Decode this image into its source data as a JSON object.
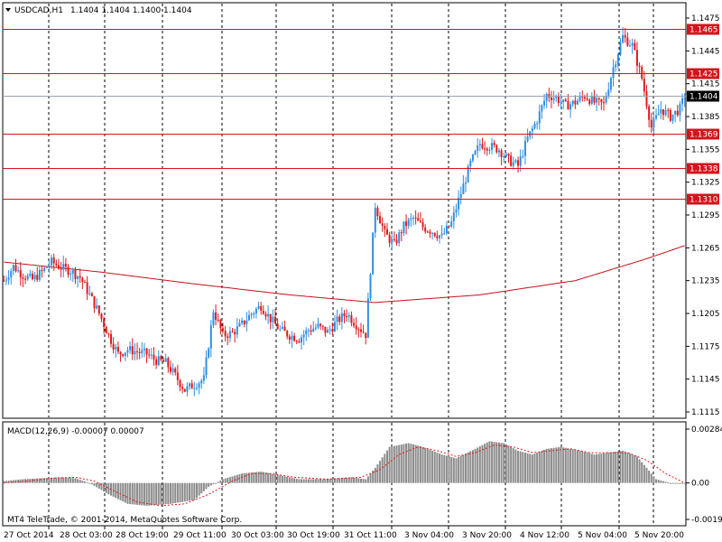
{
  "window": {
    "symbol_title": "USDCAD,H1",
    "ohlc_readout": "1.1404 1.1404 1.1400 1.1404"
  },
  "copyright": "MT4 TeleTrade, © 2001-2014, MetaQuotes Software Corp.",
  "colors": {
    "up_candle": "#2f8fe0",
    "down_candle": "#e0191c",
    "ma_line": "#c8101a",
    "hline": "#d4141c",
    "bid_line": "#9aa3ad",
    "grid": "#000000",
    "macd_hist": "#8c8c8c",
    "macd_signal": "#e0191c"
  },
  "chart_data": [
    {
      "type": "candlestick",
      "symbol": "USDCAD",
      "timeframe": "H1",
      "ylim": [
        1.1115,
        1.1475
      ],
      "y_ticks": [
        "1.1475",
        "1.1445",
        "1.1415",
        "1.1385",
        "1.1355",
        "1.1325",
        "1.1295",
        "1.1265",
        "1.1235",
        "1.1205",
        "1.1175",
        "1.1145",
        "1.1115"
      ],
      "x_tick_labels": [
        "27 Oct 2014",
        "28 Oct 03:00",
        "28 Oct 19:00",
        "29 Oct 11:00",
        "30 Oct 03:00",
        "30 Oct 19:00",
        "31 Oct 11:00",
        "3 Nov 04:00",
        "3 Nov 20:00",
        "4 Nov 12:00",
        "5 Nov 04:00",
        "5 Nov 20:00"
      ],
      "grid": "vertical dashed",
      "horizontal_levels": [
        {
          "value": 1.1465,
          "label": "1.1465"
        },
        {
          "value": 1.1425,
          "label": "1.1425"
        },
        {
          "value": 1.1369,
          "label": "1.1369"
        },
        {
          "value": 1.1338,
          "label": "1.1338"
        },
        {
          "value": 1.131,
          "label": "1.1310"
        }
      ],
      "current_price": {
        "value": 1.1404,
        "label": "1.1404"
      },
      "close_path": [
        [
          0,
          1.1235
        ],
        [
          4,
          1.1248
        ],
        [
          8,
          1.124
        ],
        [
          12,
          1.1236
        ],
        [
          16,
          1.1243
        ],
        [
          20,
          1.1252
        ],
        [
          24,
          1.1247
        ],
        [
          28,
          1.1244
        ],
        [
          32,
          1.1238
        ],
        [
          36,
          1.1222
        ],
        [
          40,
          1.1205
        ],
        [
          44,
          1.1185
        ],
        [
          48,
          1.1168
        ],
        [
          52,
          1.1172
        ],
        [
          56,
          1.117
        ],
        [
          60,
          1.1168
        ],
        [
          64,
          1.1162
        ],
        [
          68,
          1.116
        ],
        [
          72,
          1.1148
        ],
        [
          76,
          1.1135
        ],
        [
          80,
          1.114
        ],
        [
          84,
          1.1145
        ],
        [
          88,
          1.1208
        ],
        [
          92,
          1.1185
        ],
        [
          96,
          1.1187
        ],
        [
          100,
          1.1195
        ],
        [
          104,
          1.1205
        ],
        [
          108,
          1.1212
        ],
        [
          112,
          1.12
        ],
        [
          116,
          1.119
        ],
        [
          120,
          1.1185
        ],
        [
          124,
          1.1182
        ],
        [
          128,
          1.119
        ],
        [
          132,
          1.1193
        ],
        [
          136,
          1.1188
        ],
        [
          140,
          1.1198
        ],
        [
          144,
          1.1205
        ],
        [
          148,
          1.1195
        ],
        [
          152,
          1.1186
        ],
        [
          156,
          1.1304
        ],
        [
          160,
          1.1278
        ],
        [
          164,
          1.1268
        ],
        [
          168,
          1.1285
        ],
        [
          172,
          1.1292
        ],
        [
          176,
          1.1284
        ],
        [
          180,
          1.128
        ],
        [
          184,
          1.1275
        ],
        [
          188,
          1.1288
        ],
        [
          192,
          1.1315
        ],
        [
          196,
          1.1342
        ],
        [
          200,
          1.136
        ],
        [
          204,
          1.1358
        ],
        [
          208,
          1.1355
        ],
        [
          212,
          1.1345
        ],
        [
          216,
          1.134
        ],
        [
          220,
          1.1365
        ],
        [
          224,
          1.1382
        ],
        [
          228,
          1.1405
        ],
        [
          232,
          1.1402
        ],
        [
          236,
          1.1395
        ],
        [
          240,
          1.1398
        ],
        [
          244,
          1.1404
        ],
        [
          248,
          1.1398
        ],
        [
          252,
          1.1396
        ],
        [
          256,
          1.143
        ],
        [
          260,
          1.1458
        ],
        [
          264,
          1.145
        ],
        [
          268,
          1.142
        ],
        [
          272,
          1.1375
        ],
        [
          276,
          1.1392
        ],
        [
          280,
          1.1385
        ],
        [
          284,
          1.1392
        ],
        [
          286,
          1.1404
        ]
      ],
      "ma_path": [
        [
          0,
          1.1252
        ],
        [
          40,
          1.1243
        ],
        [
          80,
          1.1232
        ],
        [
          120,
          1.1222
        ],
        [
          156,
          1.1215
        ],
        [
          200,
          1.1222
        ],
        [
          240,
          1.1235
        ],
        [
          270,
          1.1255
        ],
        [
          286,
          1.1267
        ]
      ]
    },
    {
      "type": "bar",
      "name": "MACD(12,26,9) -0.00007 0.00007",
      "ylim": [
        -0.00192,
        0.00284
      ],
      "y_ticks": [
        "0.00284",
        "0.00",
        "-0.00192"
      ],
      "hist_path": [
        [
          0,
          0.0001
        ],
        [
          8,
          0.0002
        ],
        [
          16,
          0.00025
        ],
        [
          24,
          0.0003
        ],
        [
          30,
          0.00025
        ],
        [
          36,
          0.0
        ],
        [
          44,
          -0.0006
        ],
        [
          52,
          -0.0011
        ],
        [
          60,
          -0.0012
        ],
        [
          70,
          -0.0011
        ],
        [
          80,
          -0.0009
        ],
        [
          86,
          -0.0002
        ],
        [
          92,
          0.0002
        ],
        [
          100,
          0.0005
        ],
        [
          108,
          0.0006
        ],
        [
          116,
          0.0004
        ],
        [
          124,
          0.0002
        ],
        [
          134,
          0.0002
        ],
        [
          146,
          0.0003
        ],
        [
          152,
          0.0002
        ],
        [
          156,
          0.0008
        ],
        [
          162,
          0.0019
        ],
        [
          170,
          0.0021
        ],
        [
          176,
          0.0019
        ],
        [
          184,
          0.0015
        ],
        [
          190,
          0.0013
        ],
        [
          198,
          0.0018
        ],
        [
          204,
          0.0022
        ],
        [
          210,
          0.0021
        ],
        [
          216,
          0.0017
        ],
        [
          222,
          0.0015
        ],
        [
          228,
          0.0018
        ],
        [
          234,
          0.0019
        ],
        [
          242,
          0.0017
        ],
        [
          248,
          0.0015
        ],
        [
          254,
          0.0016
        ],
        [
          260,
          0.0017
        ],
        [
          266,
          0.0014
        ],
        [
          270,
          0.0008
        ],
        [
          274,
          0.0002
        ],
        [
          280,
          0.0
        ],
        [
          286,
          0.0
        ]
      ],
      "signal_path": [
        [
          0,
          0.0
        ],
        [
          10,
          0.0001
        ],
        [
          20,
          0.00025
        ],
        [
          30,
          0.0003
        ],
        [
          38,
          0.0001
        ],
        [
          46,
          -0.0004
        ],
        [
          56,
          -0.001
        ],
        [
          66,
          -0.0012
        ],
        [
          76,
          -0.0011
        ],
        [
          86,
          -0.0006
        ],
        [
          96,
          0.0001
        ],
        [
          104,
          0.0005
        ],
        [
          112,
          0.0005
        ],
        [
          122,
          0.0003
        ],
        [
          136,
          0.0002
        ],
        [
          150,
          0.0003
        ],
        [
          158,
          0.0007
        ],
        [
          166,
          0.0015
        ],
        [
          174,
          0.0019
        ],
        [
          182,
          0.0017
        ],
        [
          190,
          0.0014
        ],
        [
          198,
          0.0016
        ],
        [
          206,
          0.002
        ],
        [
          214,
          0.0019
        ],
        [
          222,
          0.0016
        ],
        [
          230,
          0.0017
        ],
        [
          238,
          0.0018
        ],
        [
          246,
          0.0016
        ],
        [
          254,
          0.0016
        ],
        [
          262,
          0.0016
        ],
        [
          270,
          0.0012
        ],
        [
          278,
          0.0005
        ],
        [
          286,
          0.0
        ]
      ]
    }
  ]
}
